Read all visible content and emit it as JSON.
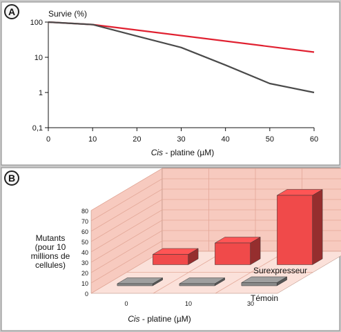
{
  "panel_a": {
    "badge": "A"
  },
  "panel_b": {
    "badge": "B"
  },
  "chart_data": [
    {
      "type": "line",
      "title": "",
      "ylabel": "Survie (%)",
      "xlabel_italic": "Cis",
      "xlabel_rest": " - platine (µM)",
      "xscale": "linear",
      "yscale": "log",
      "xlim": [
        0,
        60
      ],
      "ylim": [
        0.1,
        100
      ],
      "x_ticks": [
        0,
        10,
        20,
        30,
        40,
        50,
        60
      ],
      "y_ticks": [
        100,
        10,
        1,
        0.1
      ],
      "y_tick_labels": [
        "100",
        "10",
        "1",
        "0,1"
      ],
      "grid": false,
      "legend": "none",
      "series": [
        {
          "color": "#e02030",
          "x": [
            0,
            10,
            60
          ],
          "y": [
            100,
            85,
            14
          ]
        },
        {
          "color": "#4a4a4a",
          "x": [
            0,
            10,
            20,
            30,
            40,
            50,
            60
          ],
          "y": [
            100,
            85,
            40,
            19,
            6,
            1.8,
            1
          ]
        }
      ]
    },
    {
      "type": "bar",
      "subtype": "3d",
      "ylabel": "Mutants\n(pour 10\nmillions de\ncellules)",
      "xlabel_italic": "Cis",
      "xlabel_rest": " - platine (µM)",
      "categories": [
        "0",
        "10",
        "30"
      ],
      "ylim": [
        0,
        80
      ],
      "y_ticks": [
        0,
        10,
        20,
        30,
        40,
        50,
        60,
        70,
        80
      ],
      "series": [
        {
          "name": "Surexpresseur",
          "color": "#f04a4a",
          "values": [
            10,
            21,
            67
          ]
        },
        {
          "name": "Témoin",
          "color": "#8a8a8a",
          "values": [
            2,
            2,
            3
          ]
        }
      ]
    }
  ]
}
